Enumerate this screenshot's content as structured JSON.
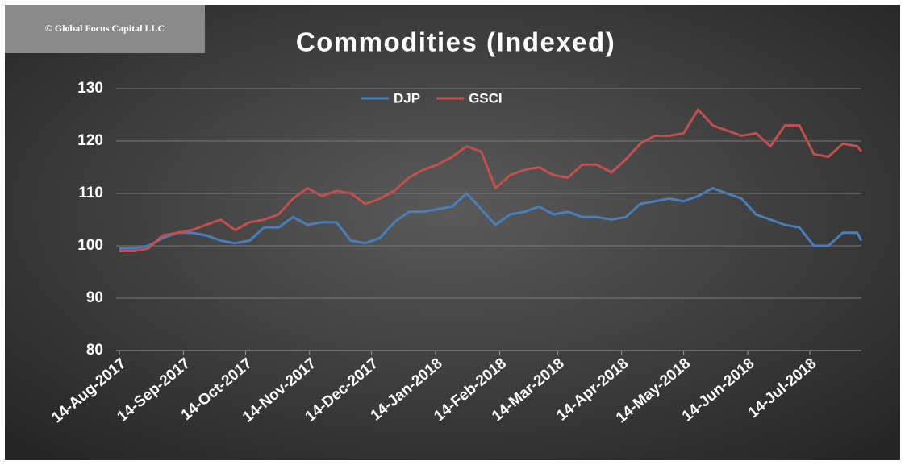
{
  "chart_data": {
    "type": "line",
    "watermark": "© Global Focus Capital LLC",
    "title": "Commodities  (Indexed)",
    "x": [
      "2017-08-14",
      "2017-08-21",
      "2017-08-28",
      "2017-09-04",
      "2017-09-11",
      "2017-09-18",
      "2017-09-25",
      "2017-10-02",
      "2017-10-09",
      "2017-10-16",
      "2017-10-23",
      "2017-10-30",
      "2017-11-06",
      "2017-11-13",
      "2017-11-20",
      "2017-11-27",
      "2017-12-04",
      "2017-12-11",
      "2017-12-18",
      "2017-12-25",
      "2018-01-01",
      "2018-01-08",
      "2018-01-15",
      "2018-01-22",
      "2018-01-29",
      "2018-02-05",
      "2018-02-12",
      "2018-02-19",
      "2018-02-26",
      "2018-03-05",
      "2018-03-12",
      "2018-03-19",
      "2018-03-26",
      "2018-04-02",
      "2018-04-09",
      "2018-04-16",
      "2018-04-23",
      "2018-04-30",
      "2018-05-07",
      "2018-05-14",
      "2018-05-21",
      "2018-05-28",
      "2018-06-04",
      "2018-06-11",
      "2018-06-18",
      "2018-06-25",
      "2018-07-02",
      "2018-07-09",
      "2018-07-16",
      "2018-07-23",
      "2018-07-30",
      "2018-08-06",
      "2018-08-08"
    ],
    "series": [
      {
        "name": "DJP",
        "color": "#4a7ebb",
        "values": [
          99.5,
          99.5,
          100,
          101.5,
          102.5,
          102.5,
          102,
          101,
          100.5,
          101,
          103.5,
          103.5,
          105.5,
          104,
          104.5,
          104.5,
          101,
          100.5,
          101.5,
          104.5,
          106.5,
          106.5,
          107,
          107.5,
          110,
          107,
          104,
          106,
          106.5,
          107.5,
          106,
          106.5,
          105.5,
          105.5,
          105,
          105.5,
          108,
          108.5,
          109,
          108.5,
          109.5,
          111,
          110,
          109,
          106,
          105,
          104,
          103.5,
          100,
          100,
          102.5,
          102.5,
          101
        ]
      },
      {
        "name": "GSCI",
        "color": "#c0504d",
        "values": [
          99,
          99,
          99.5,
          102,
          102.5,
          103,
          104,
          105,
          103,
          104.5,
          105,
          106,
          109,
          111,
          109.5,
          110.5,
          110,
          108,
          109,
          110.5,
          113,
          114.5,
          115.5,
          117,
          119,
          118,
          111,
          113.5,
          114.5,
          115,
          113.5,
          113,
          115.5,
          115.5,
          114,
          116.5,
          119.5,
          121,
          121,
          121.5,
          126,
          123,
          122,
          121,
          121.5,
          119,
          123,
          123,
          117.5,
          117,
          119.5,
          119,
          118
        ]
      }
    ],
    "xlim": [
      "2017-08-14",
      "2018-08-08"
    ],
    "xticks": [
      {
        "value": "2017-08-14",
        "label": "14-Aug-2017"
      },
      {
        "value": "2017-09-14",
        "label": "14-Sep-2017"
      },
      {
        "value": "2017-10-14",
        "label": "14-Oct-2017"
      },
      {
        "value": "2017-11-14",
        "label": "14-Nov-2017"
      },
      {
        "value": "2017-12-14",
        "label": "14-Dec-2017"
      },
      {
        "value": "2018-01-14",
        "label": "14-Jan-2018"
      },
      {
        "value": "2018-02-14",
        "label": "14-Feb-2018"
      },
      {
        "value": "2018-03-14",
        "label": "14-Mar-2018"
      },
      {
        "value": "2018-04-14",
        "label": "14-Apr-2018"
      },
      {
        "value": "2018-05-14",
        "label": "14-May-2018"
      },
      {
        "value": "2018-06-14",
        "label": "14-Jun-2018"
      },
      {
        "value": "2018-07-14",
        "label": "14-Jul-2018"
      }
    ],
    "ylim": [
      80,
      130
    ],
    "yticks": [
      80,
      90,
      100,
      110,
      120,
      130
    ],
    "grid": true,
    "legend": "top"
  }
}
